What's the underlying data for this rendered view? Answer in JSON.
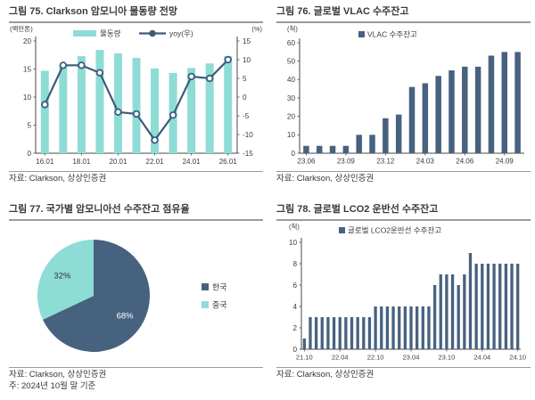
{
  "colors": {
    "teal": "#8EDCD6",
    "navy": "#47627F",
    "line_navy": "#3D5B7C",
    "axis": "#4a4a4a",
    "tick_text": "#3c3c3c",
    "rule": "#9b9b9b"
  },
  "panels": [
    {
      "source": "자료: Clarkson, 상상인증권"
    },
    {
      "source": "자료: Clarkson, 상상인증권"
    },
    {
      "source": "자료: Clarkson, 상상인증권",
      "note": "주: 2024년 10월 말 기준"
    },
    {
      "source": "자료: Clarkson, 상상인증권"
    }
  ],
  "chart_data": [
    {
      "type": "bar",
      "subtype": "combo-bar-line",
      "title": "그림 75. Clarkson 암모니아 물동량 전망",
      "categories": [
        "16.01",
        "17.01",
        "18.01",
        "19.01",
        "20.01",
        "21.01",
        "22.01",
        "23.01",
        "24.01",
        "25.01",
        "26.01"
      ],
      "x_tick_every": 2,
      "series": [
        {
          "name": "물동량",
          "type": "bar",
          "axis": "left",
          "values": [
            14.7,
            15.6,
            17.3,
            18.4,
            17.8,
            17.0,
            15.1,
            14.3,
            15.2,
            16.0,
            17.3
          ]
        },
        {
          "name": "yoy(우)",
          "type": "line",
          "axis": "right",
          "values": [
            -2,
            8.5,
            8.5,
            6.5,
            -4,
            -4.5,
            -11.5,
            -4.8,
            5.5,
            5,
            10
          ]
        }
      ],
      "left_axis": {
        "label": "(백만톤)",
        "min": 0,
        "max": 20,
        "ticks": [
          0,
          5,
          10,
          15,
          20
        ]
      },
      "right_axis": {
        "label": "(%)",
        "min": -15,
        "max": 15,
        "ticks": [
          -15,
          -10,
          -5,
          0,
          5,
          10,
          15
        ]
      },
      "legend_position": "top"
    },
    {
      "type": "bar",
      "title": "그림 76. 글로벌 VLAC 수주잔고",
      "series_name": "VLAC 수주잔고",
      "categories": [
        "23.06",
        "23.07",
        "23.08",
        "23.09",
        "23.10",
        "23.11",
        "23.12",
        "24.01",
        "24.02",
        "24.03",
        "24.04",
        "24.05",
        "24.06",
        "24.07",
        "24.08",
        "24.09",
        "24.10"
      ],
      "values": [
        4,
        4,
        4,
        4,
        10,
        10,
        19,
        21,
        36,
        38,
        42,
        45,
        47,
        47,
        53,
        55,
        55
      ],
      "y_axis": {
        "label": "(척)",
        "min": 0,
        "max": 60,
        "ticks": [
          0,
          10,
          20,
          30,
          40,
          50,
          60
        ]
      },
      "x_tick_every": 3,
      "legend_position": "top"
    },
    {
      "type": "pie",
      "title": "그림 77. 국가별 암모니아선 수주잔고 점유율",
      "slices": [
        {
          "label": "한국",
          "value": 68,
          "text": "68%",
          "color_key": "navy",
          "label_color": "#FFFFFF"
        },
        {
          "label": "중국",
          "value": 32,
          "text": "32%",
          "color_key": "teal",
          "label_color": "#333333"
        }
      ],
      "legend_position": "right"
    },
    {
      "type": "bar",
      "title": "그림 78. 글로벌 LCO2 운반선 수주잔고",
      "series_name": "글로벌 LCO2운반선 수주잔고",
      "categories": [
        "21.10",
        "21.11",
        "21.12",
        "22.01",
        "22.02",
        "22.03",
        "22.04",
        "22.05",
        "22.06",
        "22.07",
        "22.08",
        "22.09",
        "22.10",
        "22.11",
        "22.12",
        "23.01",
        "23.02",
        "23.03",
        "23.04",
        "23.05",
        "23.06",
        "23.07",
        "23.08",
        "23.09",
        "23.10",
        "23.11",
        "23.12",
        "24.01",
        "24.02",
        "24.03",
        "24.04",
        "24.05",
        "24.06",
        "24.07",
        "24.08",
        "24.09",
        "24.10"
      ],
      "values": [
        1,
        3,
        3,
        3,
        3,
        3,
        3,
        3,
        3,
        3,
        3,
        3,
        4,
        4,
        4,
        4,
        4,
        4,
        4,
        4,
        4,
        4,
        6,
        7,
        7,
        7,
        6,
        7,
        9,
        8,
        8,
        8,
        8,
        8,
        8,
        8,
        8
      ],
      "y_axis": {
        "label": "(척)",
        "min": 0,
        "max": 10,
        "ticks": [
          0,
          2,
          4,
          6,
          8,
          10
        ]
      },
      "x_tick_every": 6,
      "legend_position": "top"
    }
  ]
}
